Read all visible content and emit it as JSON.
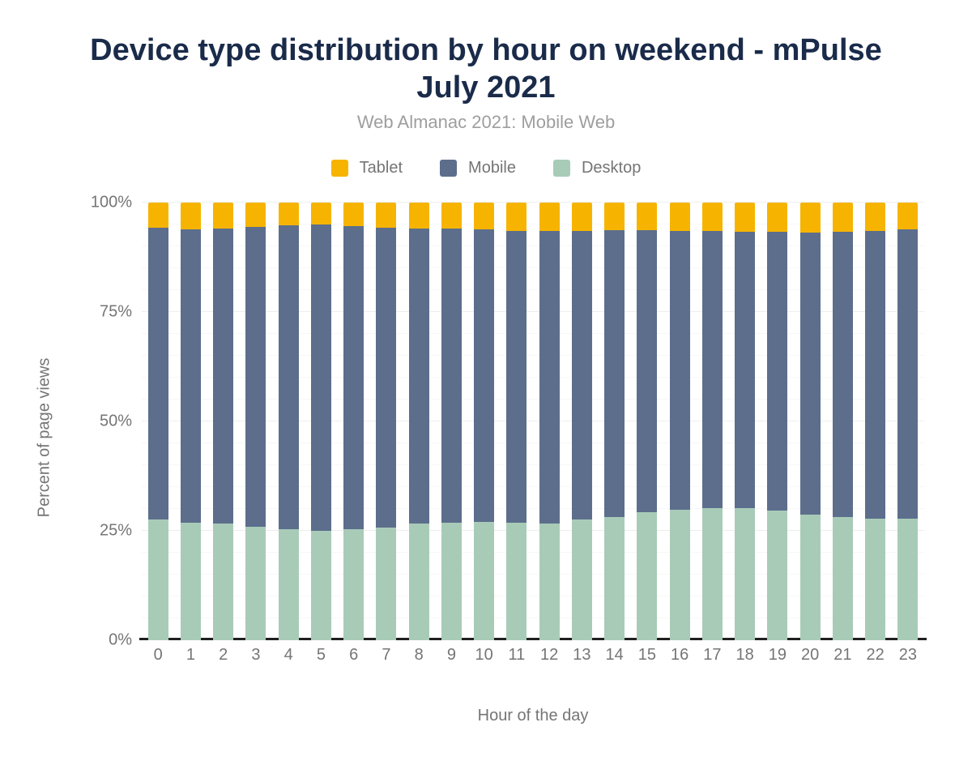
{
  "title": "Device type distribution by hour on weekend - mPulse July 2021",
  "subtitle": "Web Almanac 2021: Mobile Web",
  "legend": [
    {
      "label": "Tablet",
      "color": "#F6B400"
    },
    {
      "label": "Mobile",
      "color": "#5C6E8C"
    },
    {
      "label": "Desktop",
      "color": "#A8CBB8"
    }
  ],
  "colors": {
    "title": "#1a2b4a",
    "subtitle": "#9e9e9e",
    "axis_text": "#757575",
    "axis_line": "#1f1f1f",
    "tablet": "#F6B400",
    "mobile": "#5C6E8C",
    "desktop": "#A8CBB8"
  },
  "chart_data": {
    "type": "bar",
    "stacked": true,
    "title": "Device type distribution by hour on weekend - mPulse July 2021",
    "subtitle": "Web Almanac 2021: Mobile Web",
    "xlabel": "Hour of the day",
    "ylabel": "Percent of page views",
    "ylim": [
      0,
      100
    ],
    "yticks": [
      {
        "label": "0%",
        "value": 0
      },
      {
        "label": "25%",
        "value": 25
      },
      {
        "label": "50%",
        "value": 50
      },
      {
        "label": "75%",
        "value": 75
      },
      {
        "label": "100%",
        "value": 100
      }
    ],
    "grid": {
      "minor_step": 5,
      "major_step": 25
    },
    "legend_position": "top",
    "categories": [
      0,
      1,
      2,
      3,
      4,
      5,
      6,
      7,
      8,
      9,
      10,
      11,
      12,
      13,
      14,
      15,
      16,
      17,
      18,
      19,
      20,
      21,
      22,
      23
    ],
    "series": [
      {
        "name": "Desktop",
        "color": "#A8CBB8",
        "values": [
          27.5,
          26.9,
          26.7,
          26.0,
          25.4,
          25.0,
          25.3,
          25.7,
          26.6,
          26.8,
          27.0,
          26.8,
          26.6,
          27.5,
          28.2,
          29.3,
          29.9,
          30.2,
          30.2,
          29.7,
          28.7,
          28.1,
          27.8,
          27.7
        ]
      },
      {
        "name": "Mobile",
        "color": "#5C6E8C",
        "values": [
          66.7,
          67.0,
          67.4,
          68.4,
          69.4,
          70.0,
          69.3,
          68.5,
          67.5,
          67.3,
          66.9,
          66.7,
          66.9,
          66.0,
          65.5,
          64.4,
          63.7,
          63.4,
          63.2,
          63.6,
          64.5,
          65.2,
          65.8,
          66.2
        ]
      },
      {
        "name": "Tablet",
        "color": "#F6B400",
        "values": [
          5.8,
          6.1,
          5.9,
          5.6,
          5.2,
          5.0,
          5.4,
          5.8,
          5.9,
          5.9,
          6.1,
          6.5,
          6.5,
          6.5,
          6.3,
          6.3,
          6.4,
          6.4,
          6.6,
          6.7,
          6.8,
          6.7,
          6.4,
          6.1
        ]
      }
    ]
  }
}
